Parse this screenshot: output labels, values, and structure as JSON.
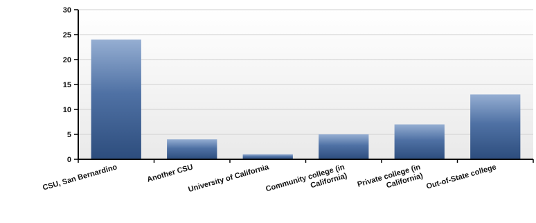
{
  "chart_data": {
    "type": "bar",
    "title": "",
    "xlabel": "",
    "ylabel": "",
    "categories": [
      "CSU, San Bernardino",
      "Another CSU",
      "University of California",
      "Community college (in\nCalifornia)",
      "Private college (in\nCalifornia)",
      "Out-of-State college"
    ],
    "values": [
      24,
      4,
      1,
      5,
      7,
      13
    ],
    "ylim": [
      0,
      30
    ],
    "yticks": [
      "0",
      "5",
      "10",
      "15",
      "20",
      "25",
      "30"
    ],
    "grid": true,
    "legend": "none",
    "colors": {
      "bar_top": "#95aed2",
      "bar_mid": "#4f71a4",
      "bar_bottom": "#2d4d7d",
      "plot_bg_top": "#ffffff",
      "plot_bg_bottom": "#e9e9e9",
      "grid": "#cfcfcf",
      "axis": "#000000"
    }
  }
}
